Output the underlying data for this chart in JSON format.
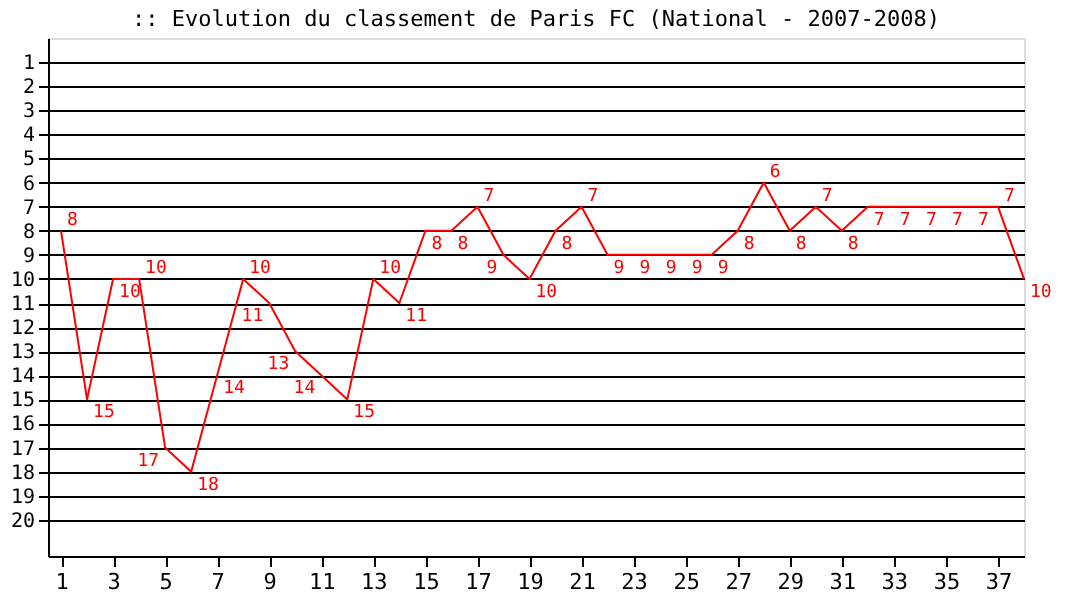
{
  "chart_data": {
    "type": "line",
    "title": ":: Evolution du classement de Paris FC (National - 2007-2008)",
    "x": [
      1,
      2,
      3,
      4,
      5,
      6,
      7,
      8,
      9,
      10,
      11,
      12,
      13,
      14,
      15,
      16,
      17,
      18,
      19,
      20,
      21,
      22,
      23,
      24,
      25,
      26,
      27,
      28,
      29,
      30,
      31,
      32,
      33,
      34,
      35,
      36,
      37,
      38
    ],
    "series": [
      {
        "color": "#ff0000",
        "values": [
          8,
          15,
          10,
          10,
          17,
          18,
          14,
          10,
          11,
          13,
          14,
          15,
          10,
          11,
          8,
          8,
          7,
          9,
          10,
          8,
          7,
          9,
          9,
          9,
          9,
          9,
          8,
          6,
          8,
          7,
          8,
          7,
          7,
          7,
          7,
          7,
          7,
          10
        ]
      }
    ],
    "xlim": [
      0.5,
      38
    ],
    "xticks": [
      1,
      3,
      5,
      7,
      9,
      11,
      13,
      15,
      17,
      19,
      21,
      23,
      25,
      27,
      29,
      31,
      33,
      35,
      37
    ],
    "ylim": [
      21.5,
      0
    ],
    "yticks": [
      1,
      2,
      3,
      4,
      5,
      6,
      7,
      8,
      9,
      10,
      11,
      12,
      13,
      14,
      15,
      16,
      17,
      18,
      19,
      20
    ],
    "grid": "y",
    "data_labels": true,
    "marker": "none",
    "line_style": "solid"
  }
}
